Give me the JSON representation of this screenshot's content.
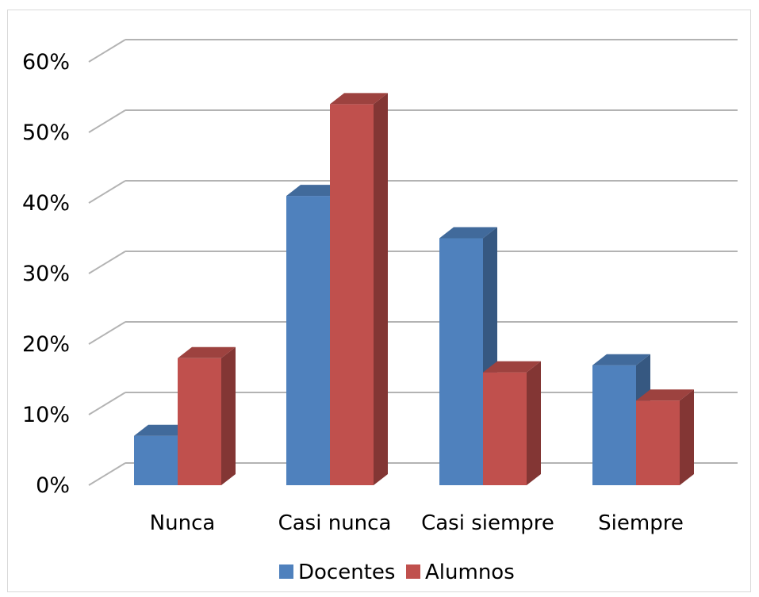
{
  "chart_data": {
    "type": "bar",
    "title": "",
    "xlabel": "",
    "ylabel": "",
    "categories": [
      "Nunca",
      "Casi nunca",
      "Casi siempre",
      "Siempre"
    ],
    "series": [
      {
        "name": "Docentes",
        "values": [
          7,
          41,
          35,
          17
        ],
        "color": "#4f81bd"
      },
      {
        "name": "Alumnos",
        "values": [
          18,
          54,
          16,
          12
        ],
        "color": "#c0504d"
      }
    ],
    "ylim": [
      0,
      60
    ],
    "yticks": [
      "0%",
      "10%",
      "20%",
      "30%",
      "40%",
      "50%",
      "60%"
    ],
    "grid": true,
    "three_d": true,
    "legend_position": "bottom"
  }
}
